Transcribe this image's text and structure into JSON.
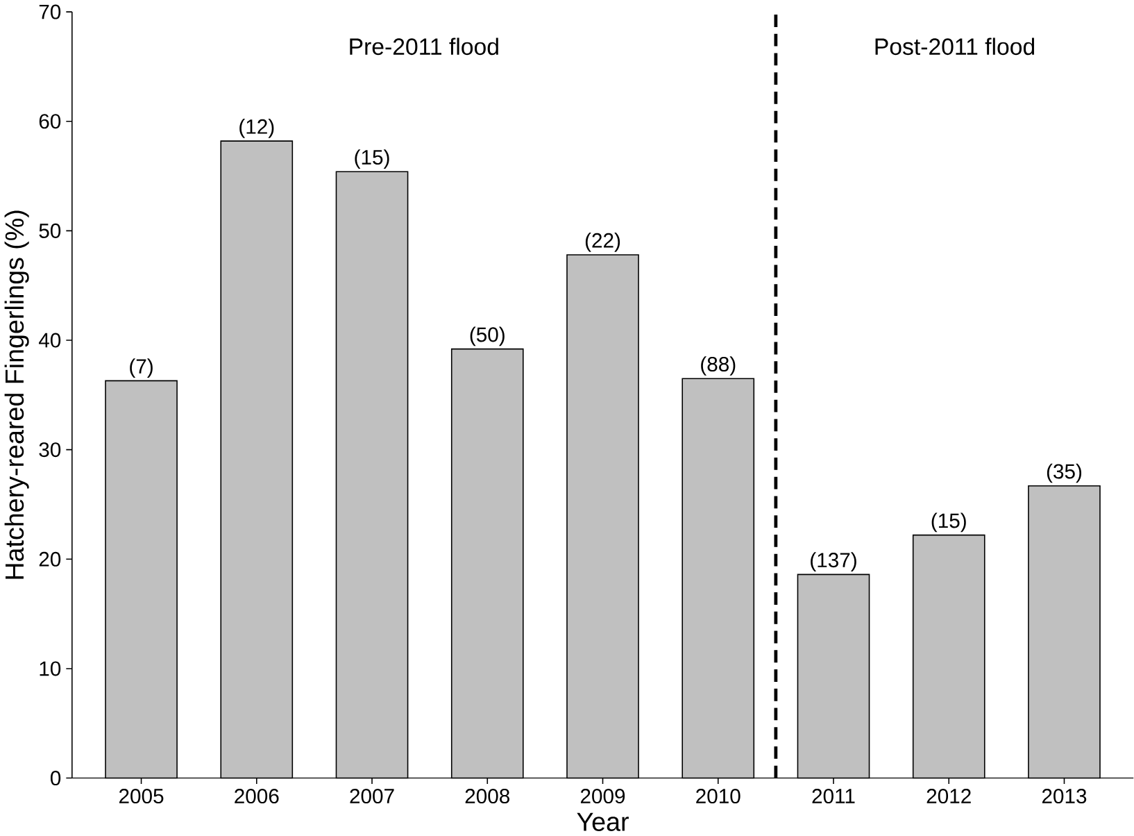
{
  "chart_data": {
    "type": "bar",
    "xlabel": "Year",
    "ylabel": "Hatchery-reared Fingerlings (%)",
    "categories": [
      "2005",
      "2006",
      "2007",
      "2008",
      "2009",
      "2010",
      "2011",
      "2012",
      "2013"
    ],
    "values": [
      36.3,
      58.2,
      55.4,
      39.2,
      47.8,
      36.5,
      18.6,
      22.2,
      26.7
    ],
    "color": "#c0c0c0",
    "ylim": [
      0,
      70
    ],
    "yticks": [
      0,
      10,
      20,
      30,
      40,
      50,
      60,
      70
    ],
    "annotations": [
      "Pre-2011 flood",
      "Post-2011 flood",
      {
        "text": "(7)",
        "x": "2005",
        "y": 36.3
      },
      {
        "text": "(12)",
        "x": "2006",
        "y": 58.2
      },
      {
        "text": "(15)",
        "x": "2007",
        "y": 55.4
      },
      {
        "text": "(50)",
        "x": "2008",
        "y": 39.2
      },
      {
        "text": "(22)",
        "x": "2009",
        "y": 47.8
      },
      {
        "text": "(88)",
        "x": "2010",
        "y": 36.5
      },
      {
        "text": "(137)",
        "x": "2011",
        "y": 18.6
      },
      {
        "text": "(15)",
        "x": "2012",
        "y": 22.2
      },
      {
        "text": "(35)",
        "x": "2013",
        "y": 26.7
      }
    ]
  }
}
